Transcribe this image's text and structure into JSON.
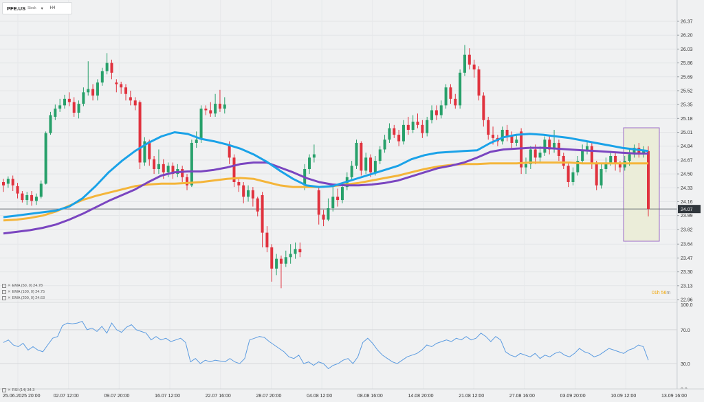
{
  "header": {
    "symbol": "PFE.US",
    "type": "Stock",
    "timeframe": "H4"
  },
  "indicators": {
    "ema50": "EMA (50, 0) 24.78",
    "ema100": "EMA (100, 0) 24.75",
    "ema200": "EMA (200, 0) 24.63",
    "rsi": "RSI (14) 34.3"
  },
  "countdown": {
    "value": "01h 56",
    "unit": "m"
  },
  "price_axis": {
    "ticks": [
      "26.37",
      "26.20",
      "26.03",
      "25.86",
      "25.69",
      "25.52",
      "25.35",
      "25.18",
      "25.01",
      "24.84",
      "24.67",
      "24.50",
      "24.33",
      "24.16",
      "23.99",
      "23.82",
      "23.64",
      "23.47",
      "23.30",
      "23.13",
      "22.96"
    ],
    "current_price": "24.07"
  },
  "rsi_axis": {
    "ticks": [
      "100.0",
      "70.0",
      "30.0",
      "0.0"
    ]
  },
  "time_axis": {
    "labels": [
      "25.06.2025 20:00",
      "02.07 12:00",
      "09.07 20:00",
      "16.07 12:00",
      "22.07 16:00",
      "28.07 20:00",
      "04.08 12:00",
      "08.08 16:00",
      "14.08 20:00",
      "21.08 12:00",
      "27.08 16:00",
      "03.09 20:00",
      "10.09 12:00",
      "13.09 16:00"
    ]
  },
  "colors": {
    "background": "#f0f1f2",
    "bull": "#27a06a",
    "bear": "#e0323e",
    "ema50": "#1aa2e8",
    "ema100": "#7a45c0",
    "ema200": "#f4b53a",
    "rsi": "#5b9be0",
    "price_line": "#6e7378",
    "highlight_fill": "#ebedd9",
    "highlight_border": "#9b6ac8",
    "price_tag": "#30363c"
  },
  "chart_data": {
    "type": "candlestick",
    "symbol": "PFE.US",
    "timeframe": "H4",
    "y_range": [
      22.96,
      26.37
    ],
    "rsi_range": [
      0,
      100
    ],
    "candles": [
      {
        "o": 24.4,
        "c": 24.36,
        "h": 24.44,
        "l": 24.28
      },
      {
        "o": 24.38,
        "c": 24.44,
        "h": 24.47,
        "l": 24.33
      },
      {
        "o": 24.44,
        "c": 24.36,
        "h": 24.48,
        "l": 24.29
      },
      {
        "o": 24.35,
        "c": 24.26,
        "h": 24.39,
        "l": 24.2
      },
      {
        "o": 24.26,
        "c": 24.18,
        "h": 24.29,
        "l": 24.15
      },
      {
        "o": 24.18,
        "c": 24.24,
        "h": 24.28,
        "l": 24.12
      },
      {
        "o": 24.24,
        "c": 24.17,
        "h": 24.29,
        "l": 24.11
      },
      {
        "o": 24.17,
        "c": 24.22,
        "h": 24.26,
        "l": 24.12
      },
      {
        "o": 24.22,
        "c": 24.38,
        "h": 24.42,
        "l": 24.2
      },
      {
        "o": 24.38,
        "c": 25.0,
        "h": 25.02,
        "l": 24.37
      },
      {
        "o": 25.0,
        "c": 25.22,
        "h": 25.26,
        "l": 24.98
      },
      {
        "o": 25.2,
        "c": 25.3,
        "h": 25.35,
        "l": 25.16
      },
      {
        "o": 25.3,
        "c": 25.34,
        "h": 25.42,
        "l": 25.26
      },
      {
        "o": 25.34,
        "c": 25.42,
        "h": 25.47,
        "l": 25.3
      },
      {
        "o": 25.42,
        "c": 25.38,
        "h": 25.5,
        "l": 25.33
      },
      {
        "o": 25.38,
        "c": 25.25,
        "h": 25.44,
        "l": 25.2
      },
      {
        "o": 25.25,
        "c": 25.36,
        "h": 25.4,
        "l": 25.18
      },
      {
        "o": 25.36,
        "c": 25.5,
        "h": 25.56,
        "l": 25.33
      },
      {
        "o": 25.5,
        "c": 25.54,
        "h": 25.88,
        "l": 25.46
      },
      {
        "o": 25.54,
        "c": 25.46,
        "h": 25.6,
        "l": 25.4
      },
      {
        "o": 25.46,
        "c": 25.62,
        "h": 25.66,
        "l": 25.4
      },
      {
        "o": 25.62,
        "c": 25.76,
        "h": 25.8,
        "l": 25.58
      },
      {
        "o": 25.76,
        "c": 25.86,
        "h": 25.98,
        "l": 25.72
      },
      {
        "o": 25.86,
        "c": 25.74,
        "h": 25.9,
        "l": 25.66
      },
      {
        "o": 25.62,
        "c": 25.6,
        "h": 25.66,
        "l": 25.5
      },
      {
        "o": 25.6,
        "c": 25.56,
        "h": 25.63,
        "l": 25.48
      },
      {
        "o": 25.56,
        "c": 25.48,
        "h": 25.6,
        "l": 25.4
      },
      {
        "o": 25.44,
        "c": 25.4,
        "h": 25.52,
        "l": 25.34
      },
      {
        "o": 25.4,
        "c": 25.34,
        "h": 25.44,
        "l": 25.28
      },
      {
        "o": 25.38,
        "c": 24.64,
        "h": 25.4,
        "l": 24.56
      },
      {
        "o": 24.64,
        "c": 24.9,
        "h": 24.95,
        "l": 24.6
      },
      {
        "o": 24.9,
        "c": 24.68,
        "h": 24.92,
        "l": 24.6
      },
      {
        "o": 24.68,
        "c": 24.56,
        "h": 24.72,
        "l": 24.5
      },
      {
        "o": 24.56,
        "c": 24.62,
        "h": 24.8,
        "l": 24.5
      },
      {
        "o": 24.62,
        "c": 24.52,
        "h": 24.68,
        "l": 24.44
      },
      {
        "o": 24.52,
        "c": 24.6,
        "h": 24.64,
        "l": 24.46
      },
      {
        "o": 24.6,
        "c": 24.5,
        "h": 24.64,
        "l": 24.44
      },
      {
        "o": 24.5,
        "c": 24.56,
        "h": 24.62,
        "l": 24.46
      },
      {
        "o": 24.56,
        "c": 24.46,
        "h": 24.6,
        "l": 24.4
      },
      {
        "o": 24.46,
        "c": 24.36,
        "h": 24.5,
        "l": 24.3
      },
      {
        "o": 24.36,
        "c": 24.88,
        "h": 24.92,
        "l": 24.34
      },
      {
        "o": 24.88,
        "c": 24.92,
        "h": 25.02,
        "l": 24.82
      },
      {
        "o": 24.92,
        "c": 25.3,
        "h": 25.34,
        "l": 24.88
      },
      {
        "o": 25.3,
        "c": 25.28,
        "h": 25.34,
        "l": 25.22
      },
      {
        "o": 25.28,
        "c": 25.24,
        "h": 25.38,
        "l": 25.2
      },
      {
        "o": 25.24,
        "c": 25.36,
        "h": 25.48,
        "l": 25.2
      },
      {
        "o": 25.36,
        "c": 25.3,
        "h": 25.53,
        "l": 25.26
      },
      {
        "o": 25.3,
        "c": 25.35,
        "h": 25.44,
        "l": 25.24
      },
      {
        "o": 24.86,
        "c": 24.7,
        "h": 24.9,
        "l": 24.62
      },
      {
        "o": 24.7,
        "c": 24.4,
        "h": 24.74,
        "l": 24.34
      },
      {
        "o": 24.4,
        "c": 24.36,
        "h": 24.44,
        "l": 24.28
      },
      {
        "o": 24.36,
        "c": 24.22,
        "h": 24.4,
        "l": 24.14
      },
      {
        "o": 24.22,
        "c": 24.3,
        "h": 24.36,
        "l": 24.16
      },
      {
        "o": 24.3,
        "c": 24.2,
        "h": 24.34,
        "l": 24.1
      },
      {
        "o": 24.2,
        "c": 24.04,
        "h": 24.22,
        "l": 23.98
      },
      {
        "o": 24.24,
        "c": 23.78,
        "h": 24.28,
        "l": 23.6
      },
      {
        "o": 23.78,
        "c": 23.6,
        "h": 23.86,
        "l": 23.54
      },
      {
        "o": 23.6,
        "c": 23.34,
        "h": 23.64,
        "l": 23.18
      },
      {
        "o": 23.34,
        "c": 23.46,
        "h": 23.52,
        "l": 23.26
      },
      {
        "o": 23.46,
        "c": 23.4,
        "h": 23.5,
        "l": 23.1
      },
      {
        "o": 23.4,
        "c": 23.48,
        "h": 23.56,
        "l": 23.36
      },
      {
        "o": 23.48,
        "c": 23.52,
        "h": 23.64,
        "l": 23.4
      },
      {
        "o": 23.52,
        "c": 23.58,
        "h": 23.66,
        "l": 23.46
      },
      {
        "o": 23.58,
        "c": 23.54,
        "h": 23.66,
        "l": 23.48
      },
      {
        "o": 24.36,
        "c": 24.56,
        "h": 24.62,
        "l": 24.3
      },
      {
        "o": 24.56,
        "c": 24.7,
        "h": 24.74,
        "l": 24.5
      },
      {
        "o": 24.7,
        "c": 24.74,
        "h": 24.86,
        "l": 24.64
      },
      {
        "o": 24.3,
        "c": 24.0,
        "h": 24.34,
        "l": 23.88
      },
      {
        "o": 24.0,
        "c": 23.94,
        "h": 24.06,
        "l": 23.86
      },
      {
        "o": 23.94,
        "c": 24.08,
        "h": 24.2,
        "l": 23.92
      },
      {
        "o": 24.08,
        "c": 24.22,
        "h": 24.34,
        "l": 24.04
      },
      {
        "o": 24.22,
        "c": 24.18,
        "h": 24.32,
        "l": 24.1
      },
      {
        "o": 24.18,
        "c": 24.34,
        "h": 24.4,
        "l": 24.14
      },
      {
        "o": 24.34,
        "c": 24.46,
        "h": 24.52,
        "l": 24.3
      },
      {
        "o": 24.46,
        "c": 24.6,
        "h": 24.66,
        "l": 24.42
      },
      {
        "o": 24.6,
        "c": 24.88,
        "h": 24.92,
        "l": 24.56
      },
      {
        "o": 24.88,
        "c": 24.54,
        "h": 24.9,
        "l": 24.48
      },
      {
        "o": 24.54,
        "c": 24.7,
        "h": 24.76,
        "l": 24.5
      },
      {
        "o": 24.7,
        "c": 24.52,
        "h": 24.74,
        "l": 24.46
      },
      {
        "o": 24.52,
        "c": 24.66,
        "h": 24.72,
        "l": 24.48
      },
      {
        "o": 24.66,
        "c": 24.8,
        "h": 24.84,
        "l": 24.62
      },
      {
        "o": 24.8,
        "c": 24.92,
        "h": 24.98,
        "l": 24.76
      },
      {
        "o": 24.92,
        "c": 25.06,
        "h": 25.12,
        "l": 24.88
      },
      {
        "o": 25.06,
        "c": 24.98,
        "h": 25.1,
        "l": 24.94
      },
      {
        "o": 24.98,
        "c": 24.9,
        "h": 25.04,
        "l": 24.84
      },
      {
        "o": 24.9,
        "c": 25.1,
        "h": 25.16,
        "l": 24.86
      },
      {
        "o": 25.1,
        "c": 25.04,
        "h": 25.2,
        "l": 24.98
      },
      {
        "o": 25.04,
        "c": 25.14,
        "h": 25.22,
        "l": 25.0
      },
      {
        "o": 25.14,
        "c": 25.1,
        "h": 25.24,
        "l": 25.06
      },
      {
        "o": 25.1,
        "c": 25.0,
        "h": 25.16,
        "l": 24.94
      },
      {
        "o": 25.0,
        "c": 25.16,
        "h": 25.2,
        "l": 24.96
      },
      {
        "o": 25.16,
        "c": 25.28,
        "h": 25.34,
        "l": 25.12
      },
      {
        "o": 25.28,
        "c": 25.22,
        "h": 25.34,
        "l": 25.16
      },
      {
        "o": 25.22,
        "c": 25.34,
        "h": 25.4,
        "l": 25.18
      },
      {
        "o": 25.34,
        "c": 25.56,
        "h": 25.6,
        "l": 25.3
      },
      {
        "o": 25.56,
        "c": 25.42,
        "h": 25.6,
        "l": 25.36
      },
      {
        "o": 25.42,
        "c": 25.34,
        "h": 25.48,
        "l": 25.3
      },
      {
        "o": 25.34,
        "c": 25.74,
        "h": 25.78,
        "l": 25.3
      },
      {
        "o": 25.74,
        "c": 25.96,
        "h": 26.08,
        "l": 25.7
      },
      {
        "o": 25.96,
        "c": 25.84,
        "h": 26.04,
        "l": 25.78
      },
      {
        "o": 25.84,
        "c": 25.78,
        "h": 25.9,
        "l": 25.68
      },
      {
        "o": 25.78,
        "c": 25.46,
        "h": 25.82,
        "l": 25.4
      },
      {
        "o": 25.46,
        "c": 25.16,
        "h": 25.5,
        "l": 25.08
      },
      {
        "o": 25.16,
        "c": 24.98,
        "h": 25.2,
        "l": 24.92
      },
      {
        "o": 24.98,
        "c": 24.94,
        "h": 25.08,
        "l": 24.86
      },
      {
        "o": 24.94,
        "c": 24.9,
        "h": 24.98,
        "l": 24.84
      },
      {
        "o": 24.9,
        "c": 25.04,
        "h": 25.08,
        "l": 24.86
      },
      {
        "o": 25.04,
        "c": 24.96,
        "h": 25.1,
        "l": 24.9
      },
      {
        "o": 24.96,
        "c": 24.88,
        "h": 25.02,
        "l": 24.8
      },
      {
        "o": 24.88,
        "c": 24.92,
        "h": 24.98,
        "l": 24.84
      },
      {
        "o": 25.02,
        "c": 24.58,
        "h": 25.06,
        "l": 24.5
      },
      {
        "o": 24.58,
        "c": 24.62,
        "h": 24.7,
        "l": 24.5
      },
      {
        "o": 24.62,
        "c": 24.8,
        "h": 24.84,
        "l": 24.56
      },
      {
        "o": 24.8,
        "c": 24.7,
        "h": 24.86,
        "l": 24.62
      },
      {
        "o": 24.7,
        "c": 24.76,
        "h": 24.84,
        "l": 24.64
      },
      {
        "o": 24.76,
        "c": 24.92,
        "h": 24.96,
        "l": 24.72
      },
      {
        "o": 24.92,
        "c": 24.8,
        "h": 24.96,
        "l": 24.74
      },
      {
        "o": 24.8,
        "c": 24.88,
        "h": 25.04,
        "l": 24.76
      },
      {
        "o": 24.88,
        "c": 24.72,
        "h": 24.92,
        "l": 24.66
      },
      {
        "o": 24.72,
        "c": 24.6,
        "h": 24.76,
        "l": 24.56
      },
      {
        "o": 24.6,
        "c": 24.4,
        "h": 24.64,
        "l": 24.34
      },
      {
        "o": 24.4,
        "c": 24.52,
        "h": 24.58,
        "l": 24.36
      },
      {
        "o": 24.52,
        "c": 24.66,
        "h": 24.72,
        "l": 24.48
      },
      {
        "o": 24.66,
        "c": 24.78,
        "h": 24.86,
        "l": 24.62
      },
      {
        "o": 24.78,
        "c": 24.84,
        "h": 24.9,
        "l": 24.74
      },
      {
        "o": 24.84,
        "c": 24.62,
        "h": 24.88,
        "l": 24.56
      },
      {
        "o": 24.62,
        "c": 24.36,
        "h": 24.66,
        "l": 24.3
      },
      {
        "o": 24.36,
        "c": 24.56,
        "h": 24.62,
        "l": 24.32
      },
      {
        "o": 24.56,
        "c": 24.64,
        "h": 24.7,
        "l": 24.52
      },
      {
        "o": 24.64,
        "c": 24.72,
        "h": 24.78,
        "l": 24.6
      },
      {
        "o": 24.72,
        "c": 24.62,
        "h": 24.76,
        "l": 24.54
      },
      {
        "o": 24.62,
        "c": 24.58,
        "h": 24.66,
        "l": 24.52
      },
      {
        "o": 24.58,
        "c": 24.66,
        "h": 24.72,
        "l": 24.54
      },
      {
        "o": 24.66,
        "c": 24.74,
        "h": 24.8,
        "l": 24.6
      },
      {
        "o": 24.74,
        "c": 24.82,
        "h": 24.86,
        "l": 24.7
      },
      {
        "o": 24.82,
        "c": 24.74,
        "h": 24.88,
        "l": 24.7
      },
      {
        "o": 24.74,
        "c": 24.78,
        "h": 24.84,
        "l": 24.7
      },
      {
        "o": 24.78,
        "c": 24.07,
        "h": 24.84,
        "l": 23.98
      }
    ],
    "ema50": [
      23.97,
      23.99,
      24.01,
      24.03,
      24.05,
      24.1,
      24.2,
      24.35,
      24.52,
      24.66,
      24.78,
      24.88,
      24.96,
      25.01,
      24.99,
      24.93,
      24.9,
      24.86,
      24.81,
      24.74,
      24.65,
      24.54,
      24.44,
      24.36,
      24.34,
      24.35,
      24.4,
      24.45,
      24.5,
      24.55,
      24.6,
      24.68,
      24.73,
      24.76,
      24.77,
      24.78,
      24.79,
      24.88,
      24.95,
      24.98,
      24.99,
      24.98,
      24.96,
      24.94,
      24.91,
      24.88,
      24.85,
      24.82,
      24.8,
      24.78
    ],
    "ema100": [
      23.77,
      23.79,
      23.81,
      23.84,
      23.88,
      23.94,
      24.01,
      24.09,
      24.17,
      24.24,
      24.31,
      24.4,
      24.48,
      24.52,
      24.53,
      24.53,
      24.55,
      24.58,
      24.62,
      24.64,
      24.64,
      24.58,
      24.52,
      24.45,
      24.4,
      24.37,
      24.36,
      24.36,
      24.37,
      24.39,
      24.42,
      24.47,
      24.52,
      24.57,
      24.6,
      24.64,
      24.7,
      24.77,
      24.8,
      24.81,
      24.82,
      24.82,
      24.81,
      24.8,
      24.79,
      24.78,
      24.77,
      24.76,
      24.75,
      24.75
    ],
    "ema200": [
      23.93,
      23.94,
      23.96,
      23.99,
      24.04,
      24.11,
      24.18,
      24.23,
      24.27,
      24.31,
      24.35,
      24.37,
      24.38,
      24.38,
      24.39,
      24.4,
      24.42,
      24.44,
      24.45,
      24.44,
      24.4,
      24.36,
      24.34,
      24.34,
      24.34,
      24.35,
      24.37,
      24.39,
      24.42,
      24.45,
      24.48,
      24.52,
      24.56,
      24.59,
      24.61,
      24.62,
      24.62,
      24.63,
      24.63,
      24.63,
      24.64,
      24.64,
      24.64,
      24.64,
      24.63,
      24.63,
      24.63,
      24.63,
      24.63,
      24.63
    ],
    "rsi": [
      55,
      58,
      52,
      50,
      54,
      46,
      50,
      46,
      44,
      52,
      60,
      62,
      75,
      78,
      77,
      78,
      80,
      70,
      72,
      68,
      74,
      66,
      78,
      70,
      67,
      73,
      76,
      70,
      68,
      66,
      58,
      62,
      58,
      60,
      56,
      58,
      60,
      55,
      32,
      36,
      30,
      34,
      32,
      34,
      33,
      32,
      36,
      32,
      30,
      36,
      58,
      60,
      62,
      61,
      56,
      52,
      48,
      44,
      38,
      36,
      40,
      30,
      32,
      28,
      32,
      30,
      24,
      28,
      30,
      34,
      36,
      30,
      38,
      55,
      60,
      54,
      46,
      40,
      36,
      32,
      30,
      34,
      38,
      40,
      42,
      46,
      52,
      50,
      54,
      56,
      58,
      56,
      60,
      58,
      62,
      58,
      60,
      66,
      62,
      56,
      62,
      58,
      44,
      40,
      38,
      42,
      40,
      38,
      42,
      36,
      40,
      38,
      42,
      44,
      40,
      38,
      42,
      48,
      44,
      42,
      38,
      40,
      44,
      48,
      46,
      44,
      42,
      46,
      48,
      52,
      50,
      34
    ]
  }
}
